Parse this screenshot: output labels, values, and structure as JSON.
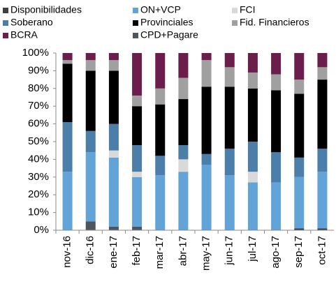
{
  "chart_data": {
    "type": "bar",
    "stacked": true,
    "categories": [
      "nov-16",
      "dic-16",
      "ene-17",
      "feb-17",
      "mar-17",
      "abr-17",
      "may-17",
      "jun-17",
      "jul-17",
      "ago-17",
      "sep-17",
      "oct-17"
    ],
    "series": [
      {
        "name": "Disponibilidades",
        "color": "#3f3f3f",
        "values": [
          0,
          0,
          0,
          0,
          0,
          0,
          0,
          0,
          0,
          0,
          1,
          1
        ]
      },
      {
        "name": "CPD+Pagare",
        "color": "#4d555e",
        "values": [
          0,
          5,
          2,
          2,
          0,
          0,
          0,
          0,
          0,
          0,
          0,
          0
        ]
      },
      {
        "name": "ON+VCP",
        "color": "#62a3d8",
        "values": [
          33,
          39,
          39,
          28,
          31,
          33,
          37,
          31,
          27,
          27,
          29,
          32
        ]
      },
      {
        "name": "FCI",
        "color": "#d9d9d9",
        "values": [
          0,
          0,
          4,
          3,
          0,
          7,
          0,
          0,
          6,
          0,
          0,
          0
        ]
      },
      {
        "name": "Soberano",
        "color": "#4b7ea8",
        "values": [
          28,
          12,
          15,
          15,
          11,
          8,
          6,
          15,
          17,
          17,
          11,
          13
        ]
      },
      {
        "name": "Provinciales",
        "color": "#000000",
        "values": [
          33,
          34,
          30,
          22,
          29,
          26,
          38,
          35,
          30,
          35,
          36,
          39
        ]
      },
      {
        "name": "Fid. Financieros",
        "color": "#a0a0a0",
        "values": [
          2,
          6,
          6,
          6,
          9,
          12,
          15,
          11,
          9,
          9,
          8,
          7
        ]
      },
      {
        "name": "BCRA",
        "color": "#6b1d4c",
        "values": [
          4,
          4,
          4,
          24,
          20,
          14,
          4,
          8,
          11,
          12,
          15,
          8
        ]
      }
    ],
    "ylim": [
      0,
      100
    ],
    "yticks": [
      {
        "value": 0,
        "label": "0%"
      },
      {
        "value": 10,
        "label": "10%"
      },
      {
        "value": 20,
        "label": "20%"
      },
      {
        "value": 30,
        "label": "30%"
      },
      {
        "value": 40,
        "label": "40%"
      },
      {
        "value": 50,
        "label": "50%"
      },
      {
        "value": 60,
        "label": "60%"
      },
      {
        "value": 70,
        "label": "70%"
      },
      {
        "value": 80,
        "label": "80%"
      },
      {
        "value": 90,
        "label": "90%"
      },
      {
        "value": 100,
        "label": "100%"
      }
    ],
    "grid": false
  }
}
